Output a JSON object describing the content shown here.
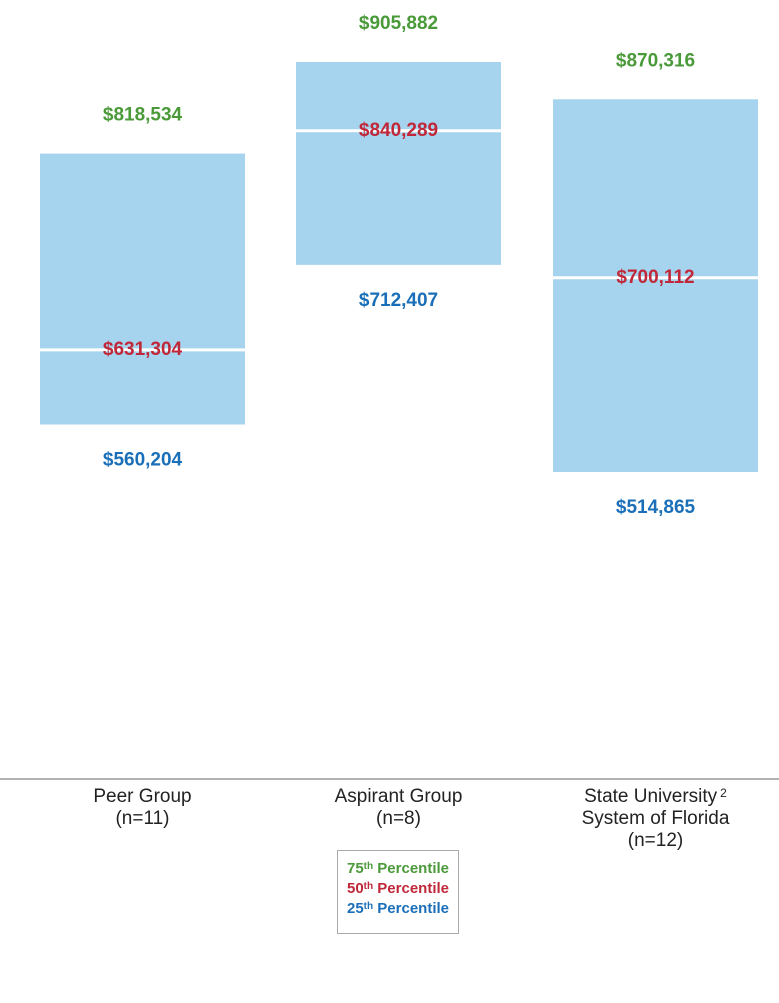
{
  "chart_data": {
    "type": "range",
    "categories": [
      "Peer Group\n(n=11)",
      "Aspirant Group\n(n=8)",
      "State University\nSystem of Florida\n(n=12)"
    ],
    "category_notes": [
      null,
      null,
      "2"
    ],
    "bar_color": "#a6d3ed",
    "series": [
      {
        "name": "75th Percentile",
        "color": "#4a9a3a",
        "values": [
          818534,
          905882,
          870316
        ],
        "value_labels": [
          "$818,534",
          "$905,882",
          "$870,316"
        ]
      },
      {
        "name": "50th Percentile",
        "color": "#c0283a",
        "values": [
          631304,
          840289,
          700112
        ],
        "value_labels": [
          "$631,304",
          "$840,289",
          "$700,112"
        ]
      },
      {
        "name": "25th Percentile",
        "color": "#1a6fb8",
        "values": [
          560204,
          712407,
          514865
        ],
        "value_labels": [
          "$560,204",
          "$712,407",
          "$514,865"
        ]
      }
    ]
  }
}
